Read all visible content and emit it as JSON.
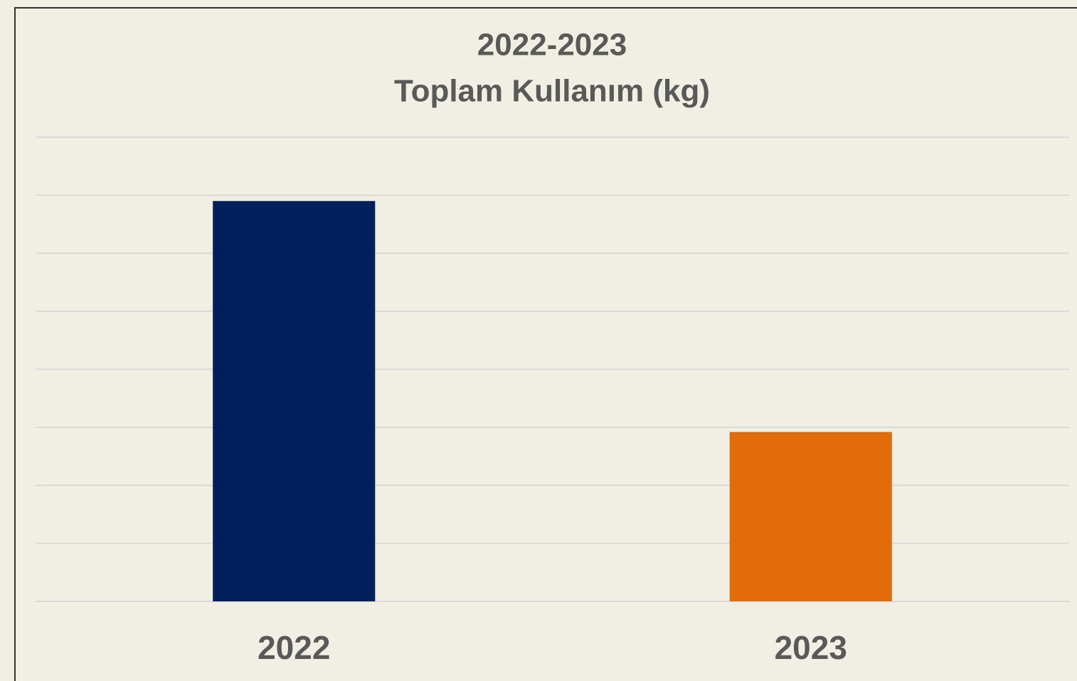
{
  "chart_data": {
    "type": "bar",
    "title": [
      "2022-2023",
      "Toplam Kullanım (kg)"
    ],
    "categories": [
      "2022",
      "2023"
    ],
    "values": [
      6.9,
      2.92
    ],
    "colors": [
      "#00205b",
      "#e36c0a"
    ],
    "ylim": [
      0,
      8
    ],
    "yticks": [
      0,
      1,
      2,
      3,
      4,
      5,
      6,
      7,
      8
    ],
    "grid": true
  }
}
